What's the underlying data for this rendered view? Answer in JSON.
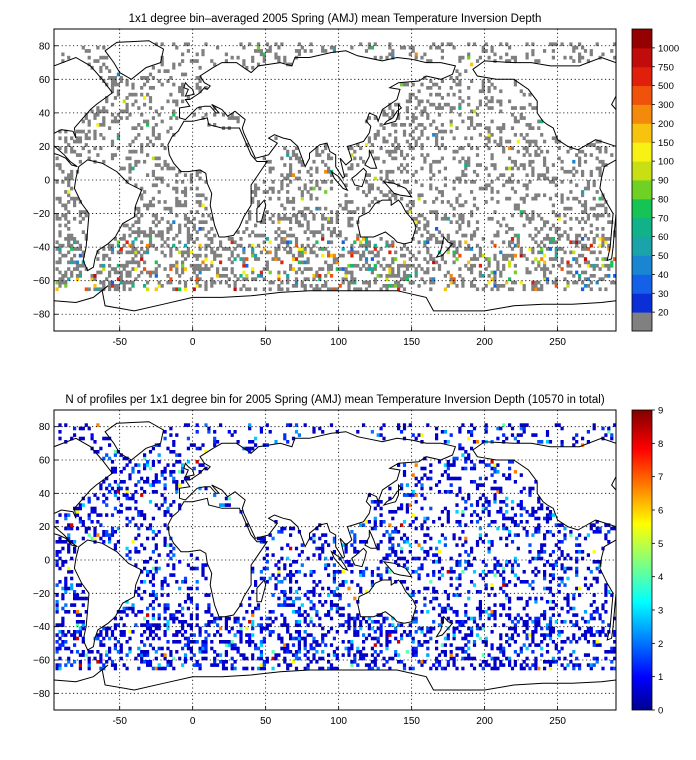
{
  "panels": [
    {
      "title": "1x1 degree bin–averaged 2005 Spring (AMJ) mean Temperature Inversion Depth",
      "xticks": [
        "-50",
        "0",
        "50",
        "100",
        "150",
        "200",
        "250"
      ],
      "yticks": [
        "80",
        "60",
        "40",
        "20",
        "0",
        "−20",
        "−40",
        "−60",
        "−80"
      ],
      "colorbar": {
        "type": "discrete",
        "labels": [
          "20",
          "30",
          "40",
          "50",
          "60",
          "70",
          "80",
          "90",
          "100",
          "150",
          "200",
          "300",
          "500",
          "750",
          "1000"
        ],
        "colors": [
          "#808080",
          "#0a2fd6",
          "#1560e8",
          "#1a86d2",
          "#1aa3a8",
          "#11b28a",
          "#16c455",
          "#6ed124",
          "#c8e013",
          "#f7f114",
          "#f7c30e",
          "#f48a0c",
          "#ef530b",
          "#e0200a",
          "#c00c0a",
          "#950000"
        ]
      }
    },
    {
      "title": "N of profiles per 1x1 degree bin for 2005 Spring (AMJ) mean Temperature Inversion Depth  (10570 in total)",
      "xticks": [
        "-50",
        "0",
        "50",
        "100",
        "150",
        "200",
        "250"
      ],
      "yticks": [
        "80",
        "60",
        "40",
        "20",
        "0",
        "−20",
        "−40",
        "−60",
        "−80"
      ],
      "colorbar": {
        "type": "continuous",
        "labels": [
          "0",
          "1",
          "2",
          "3",
          "4",
          "5",
          "6",
          "7",
          "8",
          "9"
        ],
        "colors": [
          "#00008f",
          "#0000ff",
          "#0080ff",
          "#00ffff",
          "#80ff80",
          "#ffff00",
          "#ff8000",
          "#ff0000",
          "#800000"
        ]
      }
    }
  ],
  "chart_data": [
    {
      "type": "heatmap",
      "title": "1x1 degree bin–averaged 2005 Spring (AMJ) mean Temperature Inversion Depth",
      "xlim": [
        -95,
        290
      ],
      "ylim": [
        -90,
        90
      ],
      "xticks": [
        -50,
        0,
        50,
        100,
        150,
        200,
        250
      ],
      "yticks": [
        -80,
        -60,
        -40,
        -20,
        0,
        20,
        40,
        60,
        80
      ],
      "colorbar_ticks": [
        20,
        30,
        40,
        50,
        60,
        70,
        80,
        90,
        100,
        150,
        200,
        300,
        500,
        750,
        1000
      ],
      "grid": true
    },
    {
      "type": "heatmap",
      "title": "N of profiles per 1x1 degree bin for 2005 Spring (AMJ) mean Temperature Inversion Depth  (10570 in total)",
      "xlim": [
        -95,
        290
      ],
      "ylim": [
        -90,
        90
      ],
      "xticks": [
        -50,
        0,
        50,
        100,
        150,
        200,
        250
      ],
      "yticks": [
        -80,
        -60,
        -40,
        -20,
        0,
        20,
        40,
        60,
        80
      ],
      "colorbar_range": [
        0,
        9
      ],
      "total_profiles": 10570,
      "grid": true
    }
  ]
}
